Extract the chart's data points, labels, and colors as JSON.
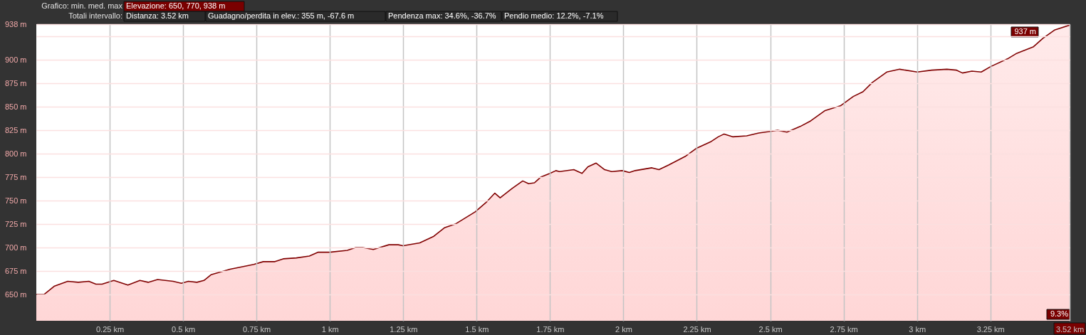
{
  "chart_data": {
    "type": "area",
    "annotations": [
      "Grafico: min. med. max",
      "Elevazione: 650, 770, 938 m",
      "Totali intervallo:",
      "Distanza: 3.52 km",
      "Guadagno/perdita in elev.: 355 m, -67.6 m",
      "Pendenza max: 34.6%, -36.7%",
      "Pendio medio: 12.2%, -7.1%",
      "937 m",
      "9.3%"
    ],
    "x": [
      0,
      0.026,
      0.062,
      0.107,
      0.143,
      0.179,
      0.203,
      0.224,
      0.264,
      0.312,
      0.353,
      0.381,
      0.413,
      0.466,
      0.494,
      0.518,
      0.547,
      0.571,
      0.595,
      0.66,
      0.708,
      0.741,
      0.773,
      0.813,
      0.841,
      0.886,
      0.93,
      0.959,
      0.999,
      1.059,
      1.088,
      1.112,
      1.148,
      1.201,
      1.233,
      1.249,
      1.306,
      1.354,
      1.39,
      1.427,
      1.495,
      1.532,
      1.562,
      1.58,
      1.621,
      1.657,
      1.677,
      1.697,
      1.718,
      1.75,
      1.77,
      1.782,
      1.831,
      1.859,
      1.879,
      1.907,
      1.936,
      1.96,
      1.996,
      2.02,
      2.04,
      2.097,
      2.121,
      2.154,
      2.21,
      2.25,
      2.299,
      2.323,
      2.343,
      2.372,
      2.42,
      2.461,
      2.505,
      2.525,
      2.557,
      2.602,
      2.638,
      2.687,
      2.739,
      2.783,
      2.816,
      2.848,
      2.897,
      2.941,
      3.001,
      3.05,
      3.102,
      3.135,
      3.155,
      3.187,
      3.219,
      3.252,
      3.308,
      3.34,
      3.397,
      3.429,
      3.47,
      3.52
    ],
    "series": [
      {
        "color": "#800000",
        "values": [
          650,
          650,
          659,
          664,
          663,
          664,
          661,
          661,
          665,
          660,
          665,
          663,
          666,
          664,
          662,
          664,
          663,
          665,
          671,
          677,
          680,
          682,
          685,
          685,
          688,
          689,
          691,
          695,
          695,
          697,
          700,
          700,
          698,
          703,
          703,
          702,
          705,
          712,
          721,
          725,
          738,
          748,
          758,
          753,
          763,
          771,
          768,
          769,
          775,
          779,
          782,
          781,
          783,
          779,
          786,
          790,
          783,
          781,
          782,
          780,
          782,
          785,
          783,
          788,
          797,
          806,
          813,
          818,
          821,
          818,
          819,
          822,
          824,
          825,
          823,
          829,
          835,
          846,
          851,
          861,
          866,
          876,
          887,
          890,
          887,
          889,
          890,
          889,
          886,
          888,
          887,
          893,
          901,
          907,
          914,
          923,
          932,
          937
        ]
      }
    ],
    "xlim": [
      0,
      3.52
    ],
    "ylim": [
      622,
      938
    ],
    "xticks": [
      {
        "value": 0.25,
        "label": "0.25 km"
      },
      {
        "value": 0.5,
        "label": "0.5 km"
      },
      {
        "value": 0.75,
        "label": "0.75 km"
      },
      {
        "value": 1,
        "label": "1 km"
      },
      {
        "value": 1.25,
        "label": "1.25 km"
      },
      {
        "value": 1.5,
        "label": "1.5 km"
      },
      {
        "value": 1.75,
        "label": "1.75 km"
      },
      {
        "value": 2,
        "label": "2 km"
      },
      {
        "value": 2.25,
        "label": "2.25 km"
      },
      {
        "value": 2.5,
        "label": "2.5 km"
      },
      {
        "value": 2.75,
        "label": "2.75 km"
      },
      {
        "value": 3,
        "label": "3 km"
      },
      {
        "value": 3.25,
        "label": "3.25 km"
      },
      {
        "value": 3.52,
        "label": "3.52 km"
      }
    ],
    "yticks": [
      {
        "value": 650,
        "label": "650 m"
      },
      {
        "value": 675,
        "label": "675 m"
      },
      {
        "value": 700,
        "label": "700 m"
      },
      {
        "value": 725,
        "label": "725 m"
      },
      {
        "value": 750,
        "label": "750 m"
      },
      {
        "value": 775,
        "label": "775 m"
      },
      {
        "value": 800,
        "label": "800 m"
      },
      {
        "value": 825,
        "label": "825 m"
      },
      {
        "value": 850,
        "label": "850 m"
      },
      {
        "value": 875,
        "label": "875 m"
      },
      {
        "value": 900,
        "label": "900 m"
      },
      {
        "value": 925,
        "label": null
      },
      {
        "value": 938,
        "label": "938 m"
      }
    ],
    "grid": true
  }
}
